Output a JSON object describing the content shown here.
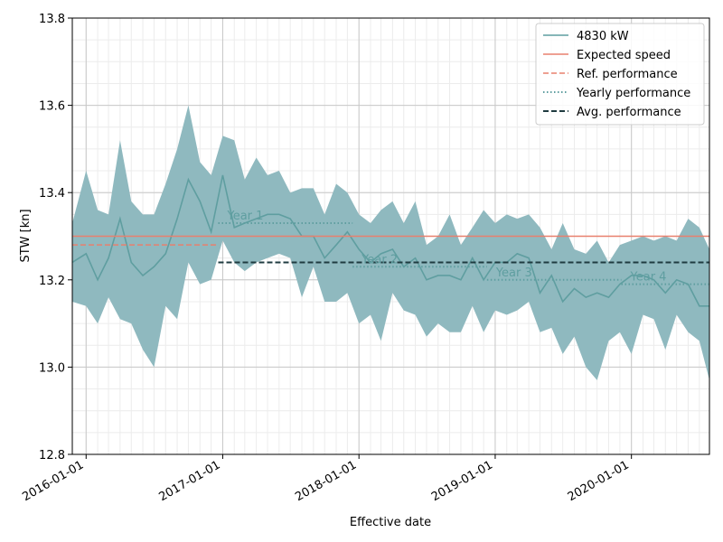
{
  "chart_data": {
    "type": "line",
    "xlabel": "Effective date",
    "ylabel": "STW [kn]",
    "xlim": [
      "2015-11-25",
      "2020-07-28"
    ],
    "ylim": [
      12.8,
      13.8
    ],
    "y_ticks": [
      "12.8",
      "13.0",
      "13.2",
      "13.4",
      "13.6",
      "13.8"
    ],
    "x_ticks": [
      "2016-01-01",
      "2017-01-01",
      "2018-01-01",
      "2019-01-01",
      "2020-01-01"
    ],
    "grid": true,
    "legend_placement": "top-right",
    "colors": {
      "band": "#8fb9bf",
      "line": "#5f9ea0",
      "expected": "#e8806e",
      "ref": "#e8806e",
      "yearly": "#5f9ea0",
      "avg": "#1f3b40"
    },
    "series": [
      {
        "name": "4830 kW",
        "points": [
          [
            "2015-11-25",
            13.24
          ],
          [
            "2016-01-01",
            13.26
          ],
          [
            "2016-02-01",
            13.2
          ],
          [
            "2016-03-01",
            13.25
          ],
          [
            "2016-04-01",
            13.34
          ],
          [
            "2016-05-01",
            13.24
          ],
          [
            "2016-06-01",
            13.21
          ],
          [
            "2016-07-01",
            13.23
          ],
          [
            "2016-08-01",
            13.26
          ],
          [
            "2016-09-01",
            13.34
          ],
          [
            "2016-10-01",
            13.43
          ],
          [
            "2016-11-01",
            13.38
          ],
          [
            "2016-12-01",
            13.31
          ],
          [
            "2017-01-01",
            13.44
          ],
          [
            "2017-02-01",
            13.32
          ],
          [
            "2017-03-01",
            13.33
          ],
          [
            "2017-04-01",
            13.34
          ],
          [
            "2017-05-01",
            13.35
          ],
          [
            "2017-06-01",
            13.35
          ],
          [
            "2017-07-01",
            13.34
          ],
          [
            "2017-08-01",
            13.3
          ],
          [
            "2017-09-01",
            13.3
          ],
          [
            "2017-10-01",
            13.25
          ],
          [
            "2017-11-01",
            13.28
          ],
          [
            "2017-12-01",
            13.31
          ],
          [
            "2018-01-01",
            13.27
          ],
          [
            "2018-02-01",
            13.24
          ],
          [
            "2018-03-01",
            13.26
          ],
          [
            "2018-04-01",
            13.27
          ],
          [
            "2018-05-01",
            13.23
          ],
          [
            "2018-06-01",
            13.25
          ],
          [
            "2018-07-01",
            13.2
          ],
          [
            "2018-08-01",
            13.21
          ],
          [
            "2018-09-01",
            13.21
          ],
          [
            "2018-10-01",
            13.2
          ],
          [
            "2018-11-01",
            13.25
          ],
          [
            "2018-12-01",
            13.2
          ],
          [
            "2019-01-01",
            13.24
          ],
          [
            "2019-02-01",
            13.24
          ],
          [
            "2019-03-01",
            13.26
          ],
          [
            "2019-04-01",
            13.25
          ],
          [
            "2019-05-01",
            13.17
          ],
          [
            "2019-06-01",
            13.21
          ],
          [
            "2019-07-01",
            13.15
          ],
          [
            "2019-08-01",
            13.18
          ],
          [
            "2019-09-01",
            13.16
          ],
          [
            "2019-10-01",
            13.17
          ],
          [
            "2019-11-01",
            13.16
          ],
          [
            "2019-12-01",
            13.19
          ],
          [
            "2020-01-01",
            13.21
          ],
          [
            "2020-02-01",
            13.21
          ],
          [
            "2020-03-01",
            13.2
          ],
          [
            "2020-04-01",
            13.17
          ],
          [
            "2020-05-01",
            13.2
          ],
          [
            "2020-06-01",
            13.19
          ],
          [
            "2020-07-01",
            13.14
          ],
          [
            "2020-07-28",
            13.14
          ]
        ],
        "band_upper": [
          13.33,
          13.45,
          13.36,
          13.35,
          13.52,
          13.38,
          13.35,
          13.35,
          13.42,
          13.5,
          13.6,
          13.47,
          13.44,
          13.53,
          13.52,
          13.43,
          13.48,
          13.44,
          13.45,
          13.4,
          13.41,
          13.41,
          13.35,
          13.42,
          13.4,
          13.35,
          13.33,
          13.36,
          13.38,
          13.33,
          13.38,
          13.28,
          13.3,
          13.35,
          13.28,
          13.32,
          13.36,
          13.33,
          13.35,
          13.34,
          13.35,
          13.32,
          13.27,
          13.33,
          13.27,
          13.26,
          13.29,
          13.24,
          13.28,
          13.29,
          13.3,
          13.29,
          13.3,
          13.29,
          13.34,
          13.32,
          13.27
        ],
        "band_lower": [
          13.15,
          13.14,
          13.1,
          13.16,
          13.11,
          13.1,
          13.04,
          13.0,
          13.14,
          13.11,
          13.24,
          13.19,
          13.2,
          13.29,
          13.24,
          13.22,
          13.24,
          13.25,
          13.26,
          13.25,
          13.16,
          13.23,
          13.15,
          13.15,
          13.17,
          13.1,
          13.12,
          13.06,
          13.17,
          13.13,
          13.12,
          13.07,
          13.1,
          13.08,
          13.08,
          13.14,
          13.08,
          13.13,
          13.12,
          13.13,
          13.15,
          13.08,
          13.09,
          13.03,
          13.07,
          13.0,
          12.97,
          13.06,
          13.08,
          13.03,
          13.12,
          13.11,
          13.04,
          13.12,
          13.08,
          13.06,
          12.97
        ]
      },
      {
        "name": "Expected speed",
        "style": "solid",
        "value": 13.3,
        "x": [
          "2015-11-25",
          "2020-07-28"
        ]
      },
      {
        "name": "Ref. performance",
        "style": "dashed",
        "value": 13.28,
        "x": [
          "2015-11-25",
          "2016-12-20"
        ]
      },
      {
        "name": "Yearly performance",
        "style": "dotted",
        "segments": [
          {
            "label": "Year 1",
            "x": [
              "2016-12-20",
              "2017-12-15"
            ],
            "value": 13.33
          },
          {
            "label": "Year 2",
            "x": [
              "2017-12-15",
              "2018-12-10"
            ],
            "value": 13.23
          },
          {
            "label": "Year 3",
            "x": [
              "2018-12-10",
              "2019-12-05"
            ],
            "value": 13.2
          },
          {
            "label": "Year 4",
            "x": [
              "2019-12-05",
              "2020-07-28"
            ],
            "value": 13.19
          }
        ]
      },
      {
        "name": "Avg. performance",
        "style": "dashed",
        "value": 13.24,
        "x": [
          "2016-12-20",
          "2020-07-28"
        ]
      }
    ]
  }
}
